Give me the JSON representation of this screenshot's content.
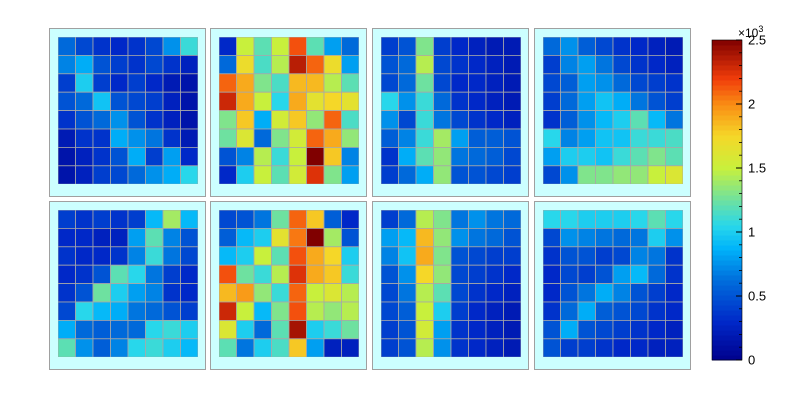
{
  "chart_data": {
    "type": "heatmap",
    "title": "",
    "zlim": [
      0,
      2500
    ],
    "colorbar": {
      "ticks": [
        "0",
        "0.5",
        "1",
        "1.5",
        "2",
        "2.5"
      ],
      "tick_values": [
        0,
        500,
        1000,
        1500,
        2000,
        2500
      ],
      "exponent_base": "×10",
      "exponent_power": "3"
    },
    "panels": [
      {
        "rows": [
          [
            600,
            450,
            350,
            300,
            350,
            450,
            750,
            1100
          ],
          [
            700,
            850,
            500,
            400,
            350,
            450,
            350,
            250
          ],
          [
            400,
            1000,
            400,
            300,
            400,
            300,
            200,
            150
          ],
          [
            500,
            600,
            950,
            500,
            450,
            400,
            250,
            150
          ],
          [
            350,
            500,
            600,
            750,
            500,
            350,
            250,
            150
          ],
          [
            200,
            350,
            350,
            850,
            750,
            650,
            350,
            200
          ],
          [
            150,
            250,
            350,
            500,
            850,
            400,
            800,
            300
          ],
          [
            150,
            250,
            400,
            450,
            600,
            750,
            850,
            1050
          ]
        ]
      },
      {
        "rows": [
          [
            300,
            1500,
            1200,
            1500,
            2150,
            1200,
            800,
            600
          ],
          [
            600,
            1700,
            1150,
            1450,
            2350,
            2100,
            1700,
            800
          ],
          [
            2100,
            1900,
            1300,
            1150,
            1850,
            1850,
            1450,
            1200
          ],
          [
            2300,
            1900,
            1500,
            1050,
            1900,
            1650,
            1750,
            1650
          ],
          [
            1300,
            1800,
            850,
            1550,
            1800,
            1350,
            2100,
            1150
          ],
          [
            1250,
            1600,
            600,
            1300,
            1550,
            2100,
            1900,
            1350
          ],
          [
            500,
            700,
            1450,
            1100,
            1500,
            2500,
            1800,
            700
          ],
          [
            300,
            1000,
            1500,
            1200,
            1550,
            2250,
            1300,
            800
          ]
        ]
      },
      {
        "rows": [
          [
            400,
            500,
            1300,
            400,
            300,
            250,
            200,
            200
          ],
          [
            500,
            600,
            1450,
            450,
            350,
            300,
            250,
            200
          ],
          [
            450,
            600,
            1250,
            450,
            300,
            300,
            250,
            200
          ],
          [
            1050,
            750,
            1100,
            600,
            350,
            300,
            250,
            200
          ],
          [
            750,
            450,
            1100,
            650,
            450,
            350,
            300,
            250
          ],
          [
            550,
            700,
            1100,
            1400,
            800,
            550,
            550,
            500
          ],
          [
            350,
            850,
            1200,
            1350,
            650,
            600,
            550,
            450
          ],
          [
            400,
            600,
            850,
            1350,
            500,
            500,
            450,
            400
          ]
        ]
      },
      {
        "rows": [
          [
            600,
            750,
            550,
            450,
            350,
            300,
            250,
            200
          ],
          [
            400,
            700,
            800,
            650,
            450,
            350,
            300,
            250
          ],
          [
            450,
            550,
            800,
            750,
            600,
            450,
            400,
            350
          ],
          [
            400,
            600,
            800,
            950,
            850,
            650,
            500,
            400
          ],
          [
            350,
            550,
            750,
            900,
            1000,
            1200,
            900,
            650
          ],
          [
            1050,
            700,
            800,
            950,
            950,
            1100,
            1100,
            1150
          ],
          [
            800,
            1000,
            1000,
            950,
            1100,
            1200,
            1300,
            1200
          ],
          [
            450,
            750,
            1300,
            1300,
            1350,
            1350,
            1500,
            1600
          ]
        ]
      },
      {
        "rows": [
          [
            400,
            350,
            400,
            350,
            400,
            900,
            1400,
            900
          ],
          [
            300,
            300,
            250,
            250,
            800,
            1200,
            700,
            500
          ],
          [
            350,
            300,
            300,
            350,
            700,
            1100,
            650,
            450
          ],
          [
            300,
            350,
            500,
            1200,
            1050,
            650,
            400,
            300
          ],
          [
            350,
            500,
            1250,
            1000,
            800,
            700,
            350,
            300
          ],
          [
            450,
            1050,
            900,
            850,
            650,
            600,
            500,
            400
          ],
          [
            850,
            600,
            550,
            600,
            600,
            1050,
            1100,
            1000
          ],
          [
            1200,
            750,
            550,
            700,
            1050,
            1100,
            1000,
            900
          ]
        ]
      },
      {
        "rows": [
          [
            450,
            500,
            650,
            1250,
            2100,
            1800,
            550,
            300
          ],
          [
            550,
            900,
            1000,
            1650,
            2050,
            2500,
            1400,
            500
          ],
          [
            900,
            1000,
            1500,
            1200,
            2150,
            1900,
            1750,
            1000
          ],
          [
            2150,
            1250,
            1100,
            1450,
            2250,
            1900,
            1800,
            1100
          ],
          [
            1850,
            1950,
            1350,
            1100,
            2100,
            1500,
            1600,
            1450
          ],
          [
            2300,
            1500,
            900,
            1300,
            2150,
            1450,
            1350,
            1450
          ],
          [
            1600,
            1000,
            600,
            1200,
            2400,
            1000,
            1100,
            1250
          ],
          [
            1200,
            650,
            1000,
            1150,
            1800,
            800,
            250,
            250
          ]
        ]
      },
      {
        "rows": [
          [
            400,
            600,
            1450,
            1300,
            650,
            750,
            650,
            600
          ],
          [
            800,
            900,
            1850,
            1350,
            750,
            650,
            600,
            500
          ],
          [
            700,
            950,
            1900,
            1300,
            500,
            450,
            400,
            400
          ],
          [
            500,
            750,
            1750,
            1350,
            450,
            400,
            350,
            300
          ],
          [
            450,
            650,
            1450,
            1200,
            450,
            350,
            300,
            250
          ],
          [
            450,
            550,
            1500,
            1000,
            400,
            300,
            250,
            200
          ],
          [
            400,
            500,
            1550,
            800,
            350,
            300,
            250,
            200
          ],
          [
            400,
            500,
            1450,
            750,
            350,
            300,
            250,
            200
          ]
        ]
      },
      {
        "rows": [
          [
            1050,
            1050,
            1000,
            1000,
            1000,
            1050,
            1200,
            1050
          ],
          [
            450,
            750,
            700,
            650,
            600,
            650,
            1000,
            750
          ],
          [
            350,
            500,
            500,
            400,
            450,
            700,
            650,
            350
          ],
          [
            300,
            450,
            400,
            500,
            800,
            900,
            600,
            350
          ],
          [
            300,
            500,
            650,
            850,
            700,
            500,
            400,
            300
          ],
          [
            350,
            600,
            850,
            550,
            500,
            450,
            350,
            300
          ],
          [
            500,
            850,
            500,
            450,
            400,
            350,
            300,
            250
          ],
          [
            500,
            400,
            400,
            350,
            300,
            300,
            250,
            250
          ]
        ]
      }
    ]
  }
}
